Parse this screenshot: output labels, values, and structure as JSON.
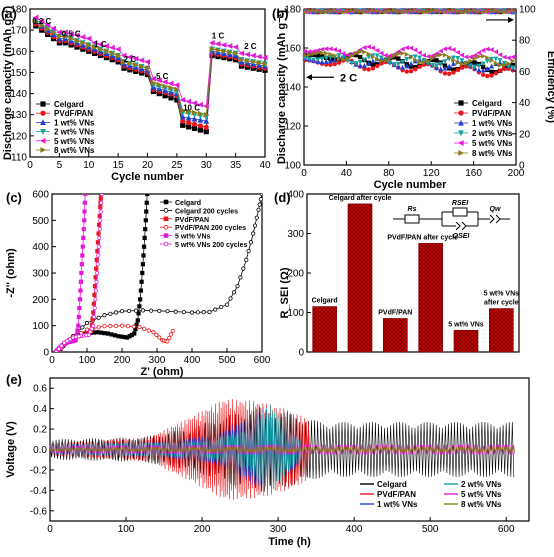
{
  "colors": {
    "Celgard": "#000000",
    "PVdF/PAN": "#e8161b",
    "1 wt% VNs": "#1f3ed1",
    "2 wt% VNs": "#15a3a3",
    "5 wt% VNs": "#e51ad8",
    "8 wt% VNs": "#8a7d1a",
    "bar": "#cc0000"
  },
  "panels": {
    "a": {
      "label": "(a)",
      "chart_data": {
        "type": "line",
        "title": "",
        "xlabel": "Cycle number",
        "ylabel": "Discharge capacity (mAh g⁻¹)",
        "xlim": [
          0,
          40
        ],
        "ylim": [
          110,
          180
        ],
        "xticks": [
          0,
          5,
          10,
          15,
          20,
          25,
          30,
          35,
          40
        ],
        "yticks": [
          110,
          120,
          130,
          140,
          150,
          160,
          170,
          180
        ],
        "rate_labels": [
          {
            "text": "0.2 C",
            "x": 2,
            "y": 173
          },
          {
            "text": "0.5 C",
            "x": 7,
            "y": 167
          },
          {
            "text": "1 C",
            "x": 12,
            "y": 162
          },
          {
            "text": "2 C",
            "x": 17,
            "y": 155
          },
          {
            "text": "5 C",
            "x": 22.5,
            "y": 147
          },
          {
            "text": "10 C",
            "x": 27.5,
            "y": 132
          },
          {
            "text": "1 C",
            "x": 32,
            "y": 166
          },
          {
            "text": "2 C",
            "x": 37.5,
            "y": 161
          }
        ],
        "legend_position": "lower-left",
        "series": [
          {
            "name": "Celgard",
            "marker": "square",
            "steps": [
              [
                172,
                164
              ],
              [
                164,
                160
              ],
              [
                159,
                155
              ],
              [
                152,
                149
              ],
              [
                141,
                137
              ],
              [
                125,
                122
              ],
              [
                158,
                156
              ],
              [
                153,
                151
              ]
            ]
          },
          {
            "name": "PVdF/PAN",
            "marker": "circle",
            "steps": [
              [
                173,
                165
              ],
              [
                165,
                161
              ],
              [
                160,
                156
              ],
              [
                153,
                150
              ],
              [
                142,
                139
              ],
              [
                127,
                124
              ],
              [
                159,
                157
              ],
              [
                154,
                152
              ]
            ]
          },
          {
            "name": "1 wt% VNs",
            "marker": "triangle-up",
            "steps": [
              [
                174,
                166
              ],
              [
                166,
                162
              ],
              [
                161,
                157
              ],
              [
                154,
                151
              ],
              [
                143,
                140
              ],
              [
                129,
                127
              ],
              [
                160,
                158
              ],
              [
                155,
                153
              ]
            ]
          },
          {
            "name": "2 wt% VNs",
            "marker": "triangle-down",
            "steps": [
              [
                175,
                167
              ],
              [
                167,
                163
              ],
              [
                162,
                158
              ],
              [
                155,
                152
              ],
              [
                144,
                141
              ],
              [
                131,
                129
              ],
              [
                161,
                159
              ],
              [
                156,
                154
              ]
            ]
          },
          {
            "name": "5 wt% VNs",
            "marker": "triangle-left",
            "steps": [
              [
                176,
                169
              ],
              [
                169,
                166
              ],
              [
                164,
                161
              ],
              [
                158,
                155
              ],
              [
                147,
                144
              ],
              [
                137,
                134
              ],
              [
                164,
                162
              ],
              [
                159,
                157
              ]
            ]
          },
          {
            "name": "8 wt% VNs",
            "marker": "triangle-right",
            "steps": [
              [
                174,
                167
              ],
              [
                167,
                163
              ],
              [
                162,
                158
              ],
              [
                155,
                152
              ],
              [
                145,
                142
              ],
              [
                132,
                130
              ],
              [
                161,
                159
              ],
              [
                156,
                154
              ]
            ]
          }
        ]
      }
    },
    "b": {
      "label": "(b)",
      "chart_data": {
        "type": "scatter",
        "title": "",
        "xlabel": "Cycle number",
        "ylabel": "Discharge capacity (mAh g⁻¹)",
        "y2label": "Efficiency (%)",
        "xlim": [
          0,
          200
        ],
        "ylim": [
          100,
          180
        ],
        "y2lim": [
          0,
          100
        ],
        "xticks": [
          0,
          40,
          80,
          120,
          160,
          200
        ],
        "yticks": [
          100,
          120,
          140,
          160,
          180
        ],
        "y2ticks": [
          0,
          20,
          40,
          60,
          80,
          100
        ],
        "annotation": "2 C",
        "legend_position": "lower-right",
        "efficiency": 99,
        "series": [
          {
            "name": "Celgard",
            "marker": "square",
            "start": 156,
            "end": 149
          },
          {
            "name": "PVdF/PAN",
            "marker": "circle",
            "start": 153,
            "end": 147
          },
          {
            "name": "1 wt% VNs",
            "marker": "triangle-up",
            "start": 154,
            "end": 150
          },
          {
            "name": "2 wt% VNs",
            "marker": "triangle-down",
            "start": 155,
            "end": 152
          },
          {
            "name": "5 wt% VNs",
            "marker": "triangle-left",
            "start": 159,
            "end": 157
          },
          {
            "name": "8 wt% VNs",
            "marker": "triangle-right",
            "start": 157,
            "end": 153
          }
        ]
      }
    },
    "c": {
      "label": "(c)",
      "chart_data": {
        "type": "scatter",
        "title": "",
        "xlabel": "Z' (ohm)",
        "ylabel": "-Z'' (ohm)",
        "xlim": [
          0,
          600
        ],
        "ylim": [
          0,
          600
        ],
        "xticks": [
          0,
          100,
          200,
          300,
          400,
          500,
          600
        ],
        "yticks": [
          0,
          100,
          200,
          300,
          400,
          500,
          600
        ],
        "legend_position": "top-right",
        "series": [
          {
            "name": "Celgard",
            "color": "#000000",
            "filled": true,
            "points": [
              [
                15,
                0
              ],
              [
                40,
                35
              ],
              [
                70,
                60
              ],
              [
                100,
                72
              ],
              [
                130,
                75
              ],
              [
                160,
                70
              ],
              [
                190,
                60
              ],
              [
                215,
                55
              ],
              [
                235,
                70
              ],
              [
                245,
                120
              ],
              [
                252,
                200
              ],
              [
                258,
                300
              ],
              [
                263,
                400
              ],
              [
                268,
                500
              ],
              [
                272,
                600
              ]
            ]
          },
          {
            "name": "Celgard 200 cycles",
            "color": "#000000",
            "filled": false,
            "points": [
              [
                15,
                0
              ],
              [
                60,
                60
              ],
              [
                100,
                110
              ],
              [
                150,
                140
              ],
              [
                200,
                155
              ],
              [
                260,
                158
              ],
              [
                330,
                155
              ],
              [
                400,
                150
              ],
              [
                450,
                152
              ],
              [
                500,
                180
              ],
              [
                530,
                250
              ],
              [
                555,
                350
              ],
              [
                575,
                450
              ],
              [
                590,
                540
              ],
              [
                600,
                600
              ]
            ]
          },
          {
            "name": "PVdF/PAN",
            "color": "#e8161b",
            "filled": true,
            "points": [
              [
                12,
                0
              ],
              [
                30,
                25
              ],
              [
                50,
                45
              ],
              [
                75,
                60
              ],
              [
                95,
                65
              ],
              [
                112,
                80
              ],
              [
                118,
                150
              ],
              [
                123,
                250
              ],
              [
                128,
                350
              ],
              [
                133,
                450
              ],
              [
                138,
                550
              ],
              [
                140,
                600
              ]
            ]
          },
          {
            "name": "PVdF/PAN 200 cycles",
            "color": "#e8161b",
            "filled": false,
            "points": [
              [
                15,
                0
              ],
              [
                50,
                45
              ],
              [
                100,
                85
              ],
              [
                150,
                98
              ],
              [
                200,
                100
              ],
              [
                250,
                95
              ],
              [
                290,
                75
              ],
              [
                315,
                45
              ],
              [
                330,
                40
              ],
              [
                345,
                80
              ]
            ]
          },
          {
            "name": "5 wt% VNs",
            "color": "#e51ad8",
            "filled": true,
            "points": [
              [
                10,
                0
              ],
              [
                25,
                20
              ],
              [
                40,
                35
              ],
              [
                55,
                40
              ],
              [
                68,
                45
              ],
              [
                75,
                100
              ],
              [
                80,
                200
              ],
              [
                84,
                300
              ],
              [
                88,
                400
              ],
              [
                92,
                500
              ],
              [
                95,
                600
              ]
            ]
          },
          {
            "name": "5 wt% VNs 200 cycles",
            "color": "#e51ad8",
            "filled": false,
            "points": [
              [
                12,
                0
              ],
              [
                35,
                35
              ],
              [
                60,
                55
              ],
              [
                85,
                62
              ],
              [
                105,
                65
              ],
              [
                118,
                100
              ],
              [
                124,
                200
              ],
              [
                129,
                300
              ],
              [
                134,
                400
              ],
              [
                138,
                500
              ],
              [
                142,
                600
              ]
            ]
          }
        ]
      }
    },
    "d": {
      "label": "(d)",
      "chart_data": {
        "type": "bar",
        "title": "",
        "xlabel": "",
        "ylabel": "R_SEI (Ω)",
        "ylim": [
          0,
          400
        ],
        "yticks": [
          0,
          100,
          200,
          300,
          400
        ],
        "categories": [
          "Celgard",
          "Celgard after cycle",
          "PVdF/PAN",
          "PVdF/PAN after cycle",
          "5 wt% VNs",
          "5 wt% VNs after cycle"
        ],
        "values": [
          115,
          375,
          85,
          275,
          55,
          110
        ],
        "circuit_labels": {
          "rs": "Rs",
          "rsei": "RSEI",
          "qsei": "QSEI",
          "qw": "Qw"
        }
      }
    },
    "e": {
      "label": "(e)",
      "chart_data": {
        "type": "line",
        "title": "",
        "xlabel": "Time (h)",
        "ylabel": "Voltage (V)",
        "xlim": [
          0,
          630
        ],
        "ylim": [
          -0.7,
          0.7
        ],
        "xticks": [
          0,
          100,
          200,
          300,
          400,
          500,
          600
        ],
        "yticks": [
          -0.6,
          -0.4,
          -0.2,
          0.0,
          0.2,
          0.4,
          0.6
        ],
        "legend_position": "lower-right",
        "series": [
          {
            "name": "Celgard",
            "end_time": 610,
            "envelope": [
              [
                0,
                0.1
              ],
              [
                120,
                0.12
              ],
              [
                180,
                0.2
              ],
              [
                240,
                0.35
              ],
              [
                280,
                0.42
              ],
              [
                320,
                0.35
              ],
              [
                340,
                0.3
              ],
              [
                360,
                0.27
              ],
              [
                610,
                0.27
              ]
            ]
          },
          {
            "name": "PVdF/PAN",
            "end_time": 340,
            "envelope": [
              [
                0,
                0.06
              ],
              [
                130,
                0.12
              ],
              [
                180,
                0.3
              ],
              [
                230,
                0.5
              ],
              [
                270,
                0.48
              ],
              [
                310,
                0.4
              ],
              [
                340,
                0.3
              ]
            ]
          },
          {
            "name": "1 wt% VNs",
            "end_time": 330,
            "envelope": [
              [
                0,
                0.05
              ],
              [
                150,
                0.08
              ],
              [
                220,
                0.15
              ],
              [
                280,
                0.4
              ],
              [
                320,
                0.2
              ],
              [
                330,
                0.1
              ]
            ]
          },
          {
            "name": "2 wt% VNs",
            "end_time": 330,
            "envelope": [
              [
                0,
                0.05
              ],
              [
                200,
                0.08
              ],
              [
                260,
                0.2
              ],
              [
                290,
                0.45
              ],
              [
                320,
                0.15
              ],
              [
                330,
                0.1
              ]
            ]
          },
          {
            "name": "5 wt% VNs",
            "end_time": 610,
            "envelope": [
              [
                0,
                0.04
              ],
              [
                300,
                0.05
              ],
              [
                610,
                0.05
              ]
            ]
          },
          {
            "name": "8 wt% VNs",
            "end_time": 610,
            "envelope": [
              [
                0,
                0.02
              ],
              [
                300,
                0.03
              ],
              [
                610,
                0.03
              ]
            ]
          }
        ]
      }
    }
  }
}
